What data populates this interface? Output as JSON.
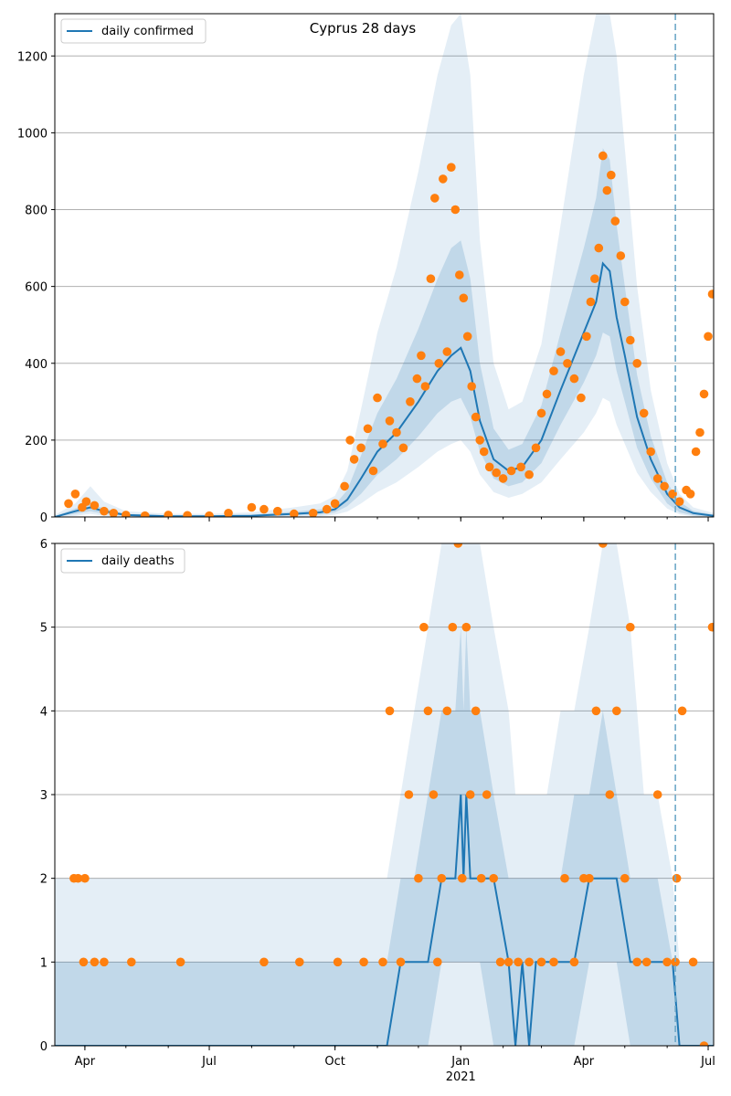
{
  "title": "Cyprus 28 days",
  "colors": {
    "line": "#1f77b4",
    "points": "#ff7f0e",
    "band": "#1f77b4",
    "grid": "#b0b0b0",
    "vline": "#6fa8c8"
  },
  "x_axis": {
    "ticks": [
      "Apr",
      "Jul",
      "Oct",
      "Jan",
      "Apr",
      "Jul"
    ],
    "year_label": "2021"
  },
  "chart_data": [
    {
      "type": "line",
      "title": "Cyprus 28 days",
      "legend": "daily confirmed",
      "legend_position": "top-left",
      "grid": true,
      "ylim": [
        0,
        1310
      ],
      "yticks": [
        0,
        200,
        400,
        600,
        800,
        1000,
        1200
      ],
      "xlim": [
        "2020-03-10",
        "2021-07-05"
      ],
      "forecast_start": "2021-06-07",
      "model_x": [
        "2020-03-10",
        "2020-03-25",
        "2020-04-05",
        "2020-04-15",
        "2020-05-01",
        "2020-06-01",
        "2020-07-01",
        "2020-08-01",
        "2020-09-01",
        "2020-09-20",
        "2020-10-01",
        "2020-10-10",
        "2020-10-20",
        "2020-11-01",
        "2020-11-15",
        "2020-12-01",
        "2020-12-15",
        "2020-12-25",
        "2021-01-01",
        "2021-01-08",
        "2021-01-15",
        "2021-01-25",
        "2021-02-05",
        "2021-02-15",
        "2021-03-01",
        "2021-03-15",
        "2021-04-01",
        "2021-04-10",
        "2021-04-15",
        "2021-04-20",
        "2021-04-25",
        "2021-05-01",
        "2021-05-10",
        "2021-05-20",
        "2021-06-01",
        "2021-06-10",
        "2021-06-20",
        "2021-07-05"
      ],
      "model_y": [
        0,
        15,
        25,
        15,
        5,
        2,
        2,
        3,
        8,
        12,
        20,
        45,
        100,
        170,
        220,
        300,
        380,
        420,
        440,
        380,
        250,
        150,
        120,
        130,
        200,
        330,
        480,
        560,
        660,
        640,
        520,
        420,
        260,
        150,
        60,
        25,
        10,
        3
      ],
      "band_inner_lo": [
        0,
        8,
        15,
        8,
        2,
        0,
        0,
        1,
        4,
        6,
        12,
        28,
        60,
        110,
        150,
        210,
        270,
        300,
        310,
        260,
        170,
        100,
        80,
        90,
        140,
        240,
        350,
        420,
        480,
        470,
        380,
        300,
        180,
        100,
        35,
        12,
        4,
        1
      ],
      "band_inner_hi": [
        2,
        22,
        35,
        22,
        8,
        4,
        4,
        6,
        14,
        20,
        32,
        70,
        160,
        270,
        360,
        490,
        620,
        700,
        720,
        620,
        400,
        230,
        175,
        190,
        290,
        480,
        700,
        830,
        960,
        930,
        760,
        600,
        370,
        210,
        90,
        40,
        16,
        6
      ],
      "band_outer_lo": [
        0,
        3,
        8,
        3,
        0,
        0,
        0,
        0,
        1,
        2,
        6,
        14,
        35,
        65,
        90,
        130,
        170,
        190,
        200,
        170,
        110,
        65,
        50,
        60,
        90,
        150,
        220,
        270,
        310,
        300,
        240,
        190,
        115,
        65,
        22,
        7,
        2,
        0
      ],
      "band_outer_hi": [
        5,
        35,
        80,
        40,
        15,
        8,
        8,
        12,
        25,
        35,
        55,
        120,
        280,
        480,
        650,
        900,
        1150,
        1280,
        1310,
        1150,
        720,
        400,
        280,
        300,
        450,
        760,
        1150,
        1310,
        1310,
        1310,
        1200,
        960,
        600,
        330,
        140,
        60,
        25,
        10
      ],
      "observed_x": [
        "2020-03-20",
        "2020-03-25",
        "2020-03-30",
        "2020-04-02",
        "2020-04-08",
        "2020-04-15",
        "2020-04-22",
        "2020-05-01",
        "2020-05-15",
        "2020-06-01",
        "2020-06-15",
        "2020-07-01",
        "2020-07-15",
        "2020-08-01",
        "2020-08-10",
        "2020-08-20",
        "2020-09-01",
        "2020-09-15",
        "2020-09-25",
        "2020-10-01",
        "2020-10-08",
        "2020-10-12",
        "2020-10-15",
        "2020-10-20",
        "2020-10-25",
        "2020-10-29",
        "2020-11-01",
        "2020-11-05",
        "2020-11-10",
        "2020-11-15",
        "2020-11-20",
        "2020-11-25",
        "2020-11-30",
        "2020-12-03",
        "2020-12-06",
        "2020-12-10",
        "2020-12-13",
        "2020-12-16",
        "2020-12-19",
        "2020-12-22",
        "2020-12-25",
        "2020-12-28",
        "2020-12-31",
        "2021-01-03",
        "2021-01-06",
        "2021-01-09",
        "2021-01-12",
        "2021-01-15",
        "2021-01-18",
        "2021-01-22",
        "2021-01-27",
        "2021-02-01",
        "2021-02-07",
        "2021-02-14",
        "2021-02-20",
        "2021-02-25",
        "2021-03-01",
        "2021-03-05",
        "2021-03-10",
        "2021-03-15",
        "2021-03-20",
        "2021-03-25",
        "2021-03-30",
        "2021-04-03",
        "2021-04-06",
        "2021-04-09",
        "2021-04-12",
        "2021-04-15",
        "2021-04-18",
        "2021-04-21",
        "2021-04-24",
        "2021-04-28",
        "2021-05-01",
        "2021-05-05",
        "2021-05-10",
        "2021-05-15",
        "2021-05-20",
        "2021-05-25",
        "2021-05-30",
        "2021-06-05",
        "2021-06-10",
        "2021-06-15",
        "2021-06-18",
        "2021-06-22",
        "2021-06-25",
        "2021-06-28",
        "2021-07-01",
        "2021-07-04"
      ],
      "observed_y": [
        35,
        60,
        25,
        40,
        30,
        15,
        10,
        5,
        3,
        5,
        4,
        3,
        10,
        25,
        20,
        15,
        8,
        10,
        20,
        35,
        80,
        200,
        150,
        180,
        230,
        120,
        310,
        190,
        250,
        220,
        180,
        300,
        360,
        420,
        340,
        620,
        830,
        400,
        880,
        430,
        910,
        800,
        630,
        570,
        470,
        340,
        260,
        200,
        170,
        130,
        115,
        100,
        120,
        130,
        110,
        180,
        270,
        320,
        380,
        430,
        400,
        360,
        310,
        470,
        560,
        620,
        700,
        940,
        850,
        890,
        770,
        680,
        560,
        460,
        400,
        270,
        170,
        100,
        80,
        60,
        40,
        70,
        60,
        170,
        220,
        320,
        470,
        580
      ]
    },
    {
      "type": "line",
      "legend": "daily deaths",
      "legend_position": "top-left",
      "grid": true,
      "ylim": [
        0,
        6
      ],
      "yticks": [
        0,
        1,
        2,
        3,
        4,
        5,
        6
      ],
      "xlim": [
        "2020-03-10",
        "2021-07-05"
      ],
      "forecast_start": "2021-06-07",
      "model_x": [
        "2020-03-10",
        "2020-11-08",
        "2020-11-18",
        "2020-11-28",
        "2020-12-08",
        "2020-12-18",
        "2020-12-28",
        "2021-01-01",
        "2021-01-03",
        "2021-01-05",
        "2021-01-08",
        "2021-01-15",
        "2021-01-25",
        "2021-02-05",
        "2021-02-10",
        "2021-02-15",
        "2021-02-20",
        "2021-02-25",
        "2021-03-05",
        "2021-03-15",
        "2021-03-25",
        "2021-04-05",
        "2021-04-15",
        "2021-04-25",
        "2021-05-05",
        "2021-05-15",
        "2021-05-25",
        "2021-06-05",
        "2021-06-10",
        "2021-07-05"
      ],
      "model_y": [
        0,
        0,
        1,
        1,
        1,
        2,
        2,
        3,
        2,
        3,
        2,
        2,
        2,
        1,
        0,
        1,
        0,
        1,
        1,
        1,
        1,
        2,
        2,
        2,
        1,
        1,
        1,
        1,
        0,
        0
      ],
      "band_inner_lo": [
        0,
        0,
        0,
        0,
        0,
        1,
        1,
        1,
        1,
        1,
        1,
        1,
        0,
        0,
        0,
        0,
        0,
        0,
        0,
        0,
        0,
        1,
        1,
        1,
        0,
        0,
        0,
        0,
        0,
        0
      ],
      "band_inner_hi": [
        1,
        1,
        2,
        2,
        3,
        4,
        4,
        5,
        4,
        5,
        4,
        4,
        3,
        2,
        2,
        2,
        2,
        2,
        2,
        2,
        3,
        3,
        4,
        3,
        2,
        2,
        2,
        1,
        1,
        1
      ],
      "band_outer_lo": [
        0,
        0,
        0,
        0,
        0,
        0,
        0,
        0,
        0,
        0,
        0,
        0,
        0,
        0,
        0,
        0,
        0,
        0,
        0,
        0,
        0,
        0,
        0,
        0,
        0,
        0,
        0,
        0,
        0,
        0
      ],
      "band_outer_hi": [
        2,
        2,
        3,
        4,
        5,
        6,
        6,
        6,
        6,
        6,
        6,
        6,
        5,
        4,
        3,
        3,
        3,
        3,
        3,
        4,
        4,
        5,
        6,
        6,
        5,
        3,
        3,
        2,
        1,
        1
      ],
      "observed_x": [
        "2020-03-24",
        "2020-03-27",
        "2020-03-31",
        "2020-04-01",
        "2020-04-08",
        "2020-04-15",
        "2020-05-05",
        "2020-06-10",
        "2020-08-10",
        "2020-09-05",
        "2020-10-03",
        "2020-10-22",
        "2020-11-05",
        "2020-11-10",
        "2020-11-18",
        "2020-11-24",
        "2020-12-01",
        "2020-12-05",
        "2020-12-08",
        "2020-12-12",
        "2020-12-15",
        "2020-12-18",
        "2020-12-22",
        "2020-12-26",
        "2020-12-30",
        "2021-01-02",
        "2021-01-05",
        "2021-01-08",
        "2021-01-12",
        "2021-01-16",
        "2021-01-20",
        "2021-01-25",
        "2021-01-30",
        "2021-02-05",
        "2021-02-12",
        "2021-02-20",
        "2021-03-01",
        "2021-03-10",
        "2021-03-18",
        "2021-03-25",
        "2021-04-01",
        "2021-04-05",
        "2021-04-10",
        "2021-04-15",
        "2021-04-20",
        "2021-04-25",
        "2021-05-01",
        "2021-05-05",
        "2021-05-10",
        "2021-05-17",
        "2021-05-25",
        "2021-06-01",
        "2021-06-07",
        "2021-06-08",
        "2021-06-12",
        "2021-06-20",
        "2021-06-28",
        "2021-07-04"
      ],
      "observed_y": [
        2,
        2,
        1,
        2,
        1,
        1,
        1,
        1,
        1,
        1,
        1,
        1,
        1,
        4,
        1,
        3,
        2,
        5,
        4,
        3,
        1,
        2,
        4,
        5,
        6,
        2,
        5,
        3,
        4,
        2,
        3,
        2,
        1,
        1,
        1,
        1,
        1,
        1,
        2,
        1,
        2,
        2,
        4,
        6,
        3,
        4,
        2,
        5,
        1,
        1,
        3,
        1,
        1,
        2,
        4,
        1,
        0,
        5
      ]
    }
  ]
}
